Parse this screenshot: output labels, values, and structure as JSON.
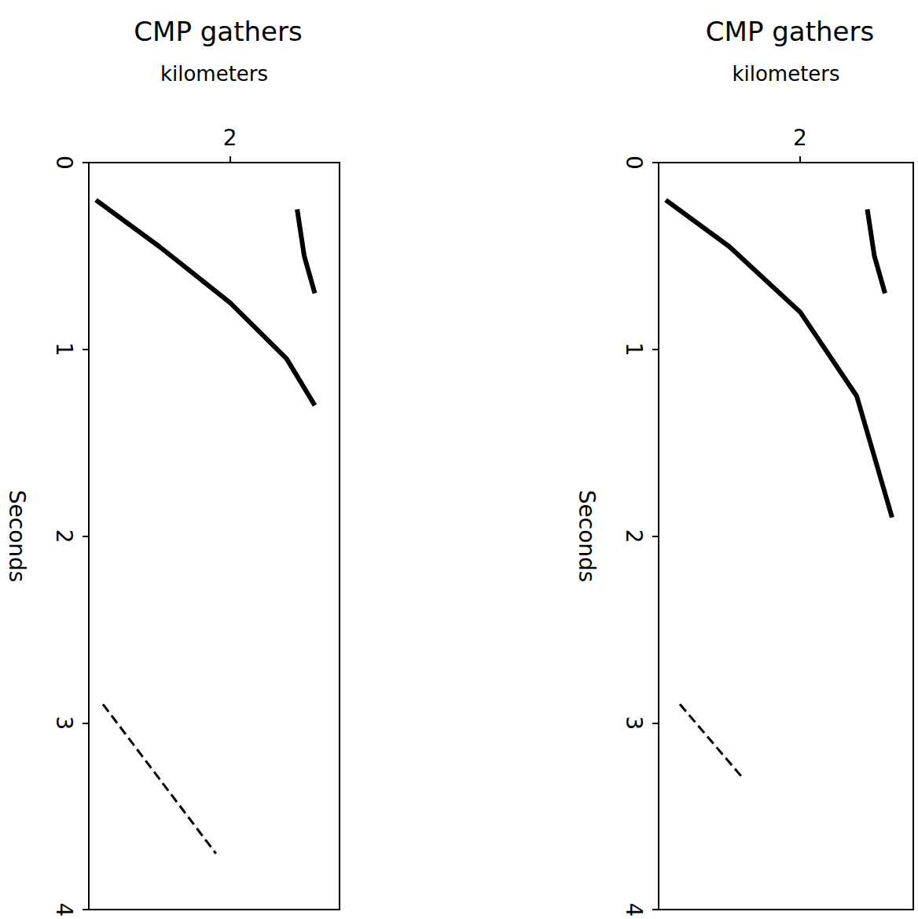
{
  "chart_data": [
    {
      "type": "line",
      "title": "CMP gathers",
      "x_label": "kilometers",
      "y_label": "Seconds",
      "xlim": [
        0,
        3.55
      ],
      "xticks": [
        2
      ],
      "ylim": [
        0,
        4
      ],
      "yticks": [
        0,
        1,
        2,
        3,
        4
      ],
      "grid": false,
      "series": [
        {
          "color": "#000000",
          "line_style": "solid",
          "x": [
            0.1,
            1.0,
            2.0,
            2.8,
            3.2
          ],
          "values": [
            0.2,
            0.45,
            0.75,
            1.05,
            1.3
          ]
        },
        {
          "color": "#000000",
          "line_style": "solid",
          "x": [
            2.95,
            3.05,
            3.2
          ],
          "values": [
            0.25,
            0.5,
            0.7
          ]
        },
        {
          "color": "#000000",
          "line_style": "dashed",
          "x": [
            0.2,
            1.0,
            1.8
          ],
          "values": [
            2.9,
            3.3,
            3.7
          ]
        }
      ]
    },
    {
      "type": "line",
      "title": "CMP gathers",
      "x_label": "kilometers",
      "y_label": "Seconds",
      "xlim": [
        0,
        3.6
      ],
      "xticks": [
        2
      ],
      "ylim": [
        0,
        4
      ],
      "yticks": [
        0,
        1,
        2,
        3,
        4
      ],
      "grid": false,
      "series": [
        {
          "color": "#000000",
          "line_style": "solid",
          "x": [
            0.1,
            1.0,
            2.0,
            2.8,
            3.3
          ],
          "values": [
            0.2,
            0.45,
            0.8,
            1.25,
            1.9
          ]
        },
        {
          "color": "#000000",
          "line_style": "solid",
          "x": [
            2.95,
            3.05,
            3.2
          ],
          "values": [
            0.25,
            0.5,
            0.7
          ]
        },
        {
          "color": "#000000",
          "line_style": "dashed",
          "x": [
            0.3,
            1.2
          ],
          "values": [
            2.9,
            3.3
          ]
        }
      ]
    }
  ]
}
